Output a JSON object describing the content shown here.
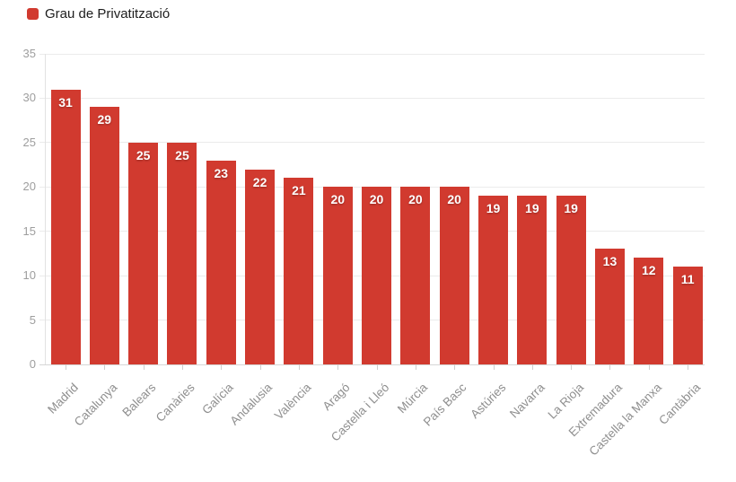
{
  "legend": {
    "label": "Grau de Privatització",
    "swatch_color": "#d13a2f"
  },
  "chart_data": {
    "type": "bar",
    "series_name": "Grau de Privatització",
    "categories": [
      "Madrid",
      "Catalunya",
      "Balears",
      "Canàries",
      "Galícia",
      "Andalusia",
      "València",
      "Aragó",
      "Castella i Lleó",
      "Múrcia",
      "País Basc",
      "Astúries",
      "Navarra",
      "La Rioja",
      "Extremadura",
      "Castella la Manxa",
      "Cantàbria"
    ],
    "values": [
      31,
      29,
      25,
      25,
      23,
      22,
      21,
      20,
      20,
      20,
      20,
      19,
      19,
      19,
      13,
      12,
      11
    ],
    "title": "",
    "xlabel": "",
    "ylabel": "",
    "ylim": [
      0,
      35
    ],
    "yticks": [
      0,
      5,
      10,
      15,
      20,
      25,
      30,
      35
    ],
    "grid": true,
    "legend_position": "top-left",
    "value_labels": "inside-top"
  },
  "colors": {
    "bar": "#d13a2f",
    "grid": "#ebebeb",
    "baseline": "#d6d6d6",
    "axis_line": "#e2e2e2",
    "tick": "#cfcfcf",
    "y_label": "#9e9e9e",
    "x_label": "#8f8f8f",
    "value_label": "#ffffff",
    "legend_text": "#1d1d1d"
  }
}
